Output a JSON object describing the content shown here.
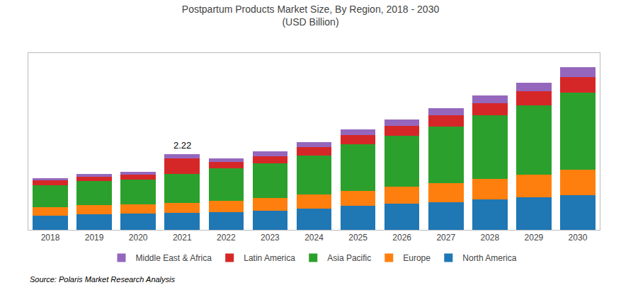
{
  "chart_data": {
    "type": "bar",
    "title": "Postpartum Products Market Size, By Region, 2018 - 2030",
    "subtitle": "(USD Billion)",
    "source": "Source: Polaris Market Research Analysis",
    "categories": [
      "2018",
      "2019",
      "2020",
      "2021",
      "2022",
      "2023",
      "2024",
      "2025",
      "2026",
      "2027",
      "2028",
      "2029",
      "2030"
    ],
    "series": [
      {
        "name": "North America",
        "values": [
          0.42,
          0.46,
          0.47,
          0.5,
          0.53,
          0.57,
          0.63,
          0.7,
          0.76,
          0.82,
          0.89,
          0.95,
          1.02
        ]
      },
      {
        "name": "Europe",
        "values": [
          0.25,
          0.27,
          0.28,
          0.3,
          0.33,
          0.36,
          0.4,
          0.45,
          0.5,
          0.55,
          0.61,
          0.67,
          0.74
        ]
      },
      {
        "name": "Asia Pacific",
        "values": [
          0.65,
          0.7,
          0.72,
          0.84,
          0.94,
          1.03,
          1.16,
          1.36,
          1.5,
          1.66,
          1.86,
          2.04,
          2.28
        ]
      },
      {
        "name": "Latin America",
        "values": [
          0.13,
          0.14,
          0.15,
          0.46,
          0.19,
          0.21,
          0.24,
          0.27,
          0.3,
          0.33,
          0.37,
          0.41,
          0.46
        ]
      },
      {
        "name": "Middle East & Africa",
        "values": [
          0.07,
          0.08,
          0.09,
          0.12,
          0.11,
          0.13,
          0.15,
          0.17,
          0.19,
          0.21,
          0.23,
          0.26,
          0.28
        ]
      }
    ],
    "annotations": [
      {
        "x": "2021",
        "y": 2.22,
        "text": "2.22"
      }
    ],
    "stacked": true,
    "ylim": [
      0,
      5.2
    ],
    "tick_labels": "x",
    "grid": false,
    "legend": "bottom"
  }
}
